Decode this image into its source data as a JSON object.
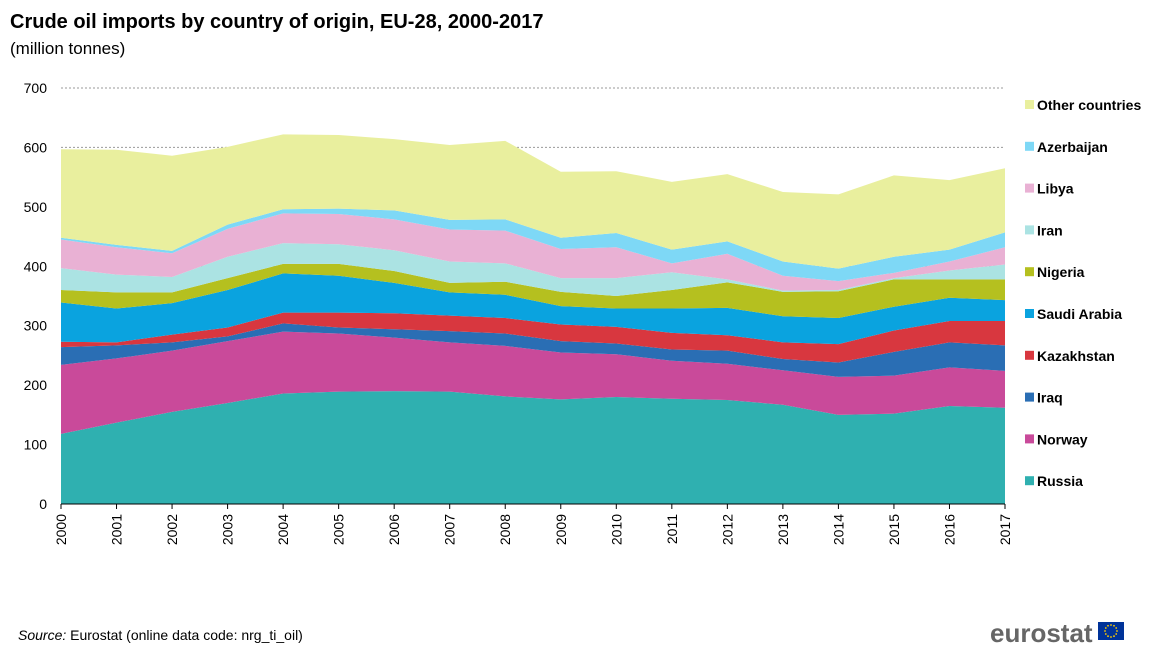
{
  "chart_data": {
    "type": "stacked_area",
    "title": "Crude oil imports by country of origin, EU-28, 2000-2017",
    "subtitle": "(million tonnes)",
    "source_label": "Source:",
    "source_text": "Eurostat (online data code: nrg_ti_oil)",
    "logo": "eurostat",
    "categories": [
      "2000",
      "2001",
      "2002",
      "2003",
      "2004",
      "2005",
      "2006",
      "2007",
      "2008",
      "2009",
      "2010",
      "2011",
      "2012",
      "2013",
      "2014",
      "2015",
      "2016",
      "2017"
    ],
    "ylim": [
      0,
      700
    ],
    "yticks": [
      0,
      100,
      200,
      300,
      400,
      500,
      600,
      700
    ],
    "grid": true,
    "legend": "right",
    "series": [
      {
        "name": "Russia",
        "color": "#2fb0b0",
        "values": [
          118,
          137,
          155,
          170,
          186,
          189,
          190,
          189,
          181,
          176,
          180,
          177,
          175,
          167,
          150,
          152,
          165,
          162
        ]
      },
      {
        "name": "Norway",
        "color": "#c94a9a",
        "values": [
          116,
          108,
          103,
          104,
          104,
          98,
          90,
          83,
          85,
          79,
          72,
          64,
          61,
          58,
          64,
          64,
          65,
          62
        ]
      },
      {
        "name": "Iraq",
        "color": "#2a6eb4",
        "values": [
          30,
          22,
          14,
          8,
          14,
          10,
          14,
          19,
          21,
          19,
          18,
          19,
          22,
          19,
          24,
          40,
          42,
          43
        ]
      },
      {
        "name": "Kazakhstan",
        "color": "#d8373f",
        "values": [
          9,
          5,
          13,
          15,
          18,
          25,
          27,
          26,
          26,
          28,
          28,
          28,
          26,
          28,
          31,
          36,
          36,
          41
        ]
      },
      {
        "name": "Saudi Arabia",
        "color": "#0aa3df",
        "values": [
          66,
          57,
          53,
          63,
          66,
          62,
          51,
          39,
          39,
          31,
          31,
          41,
          46,
          44,
          44,
          40,
          39,
          35
        ]
      },
      {
        "name": "Nigeria",
        "color": "#b5c01f",
        "values": [
          21,
          27,
          18,
          20,
          16,
          20,
          20,
          16,
          22,
          24,
          21,
          31,
          43,
          41,
          45,
          46,
          31,
          35
        ]
      },
      {
        "name": "Iran",
        "color": "#abe3e3",
        "values": [
          37,
          30,
          26,
          36,
          35,
          33,
          35,
          36,
          31,
          23,
          30,
          30,
          5,
          2,
          2,
          2,
          15,
          25
        ]
      },
      {
        "name": "Libya",
        "color": "#e9b1d4",
        "values": [
          48,
          46,
          40,
          47,
          50,
          51,
          52,
          54,
          55,
          49,
          52,
          15,
          43,
          25,
          15,
          9,
          15,
          29
        ]
      },
      {
        "name": "Azerbaijan",
        "color": "#7ed8f6",
        "values": [
          3,
          4,
          4,
          7,
          7,
          9,
          15,
          16,
          19,
          19,
          24,
          23,
          21,
          24,
          21,
          27,
          20,
          25
        ]
      },
      {
        "name": "Other countries",
        "color": "#e9ef9e",
        "values": [
          149,
          160,
          160,
          131,
          126,
          124,
          120,
          126,
          132,
          111,
          104,
          114,
          113,
          117,
          125,
          137,
          117,
          108
        ]
      }
    ]
  }
}
